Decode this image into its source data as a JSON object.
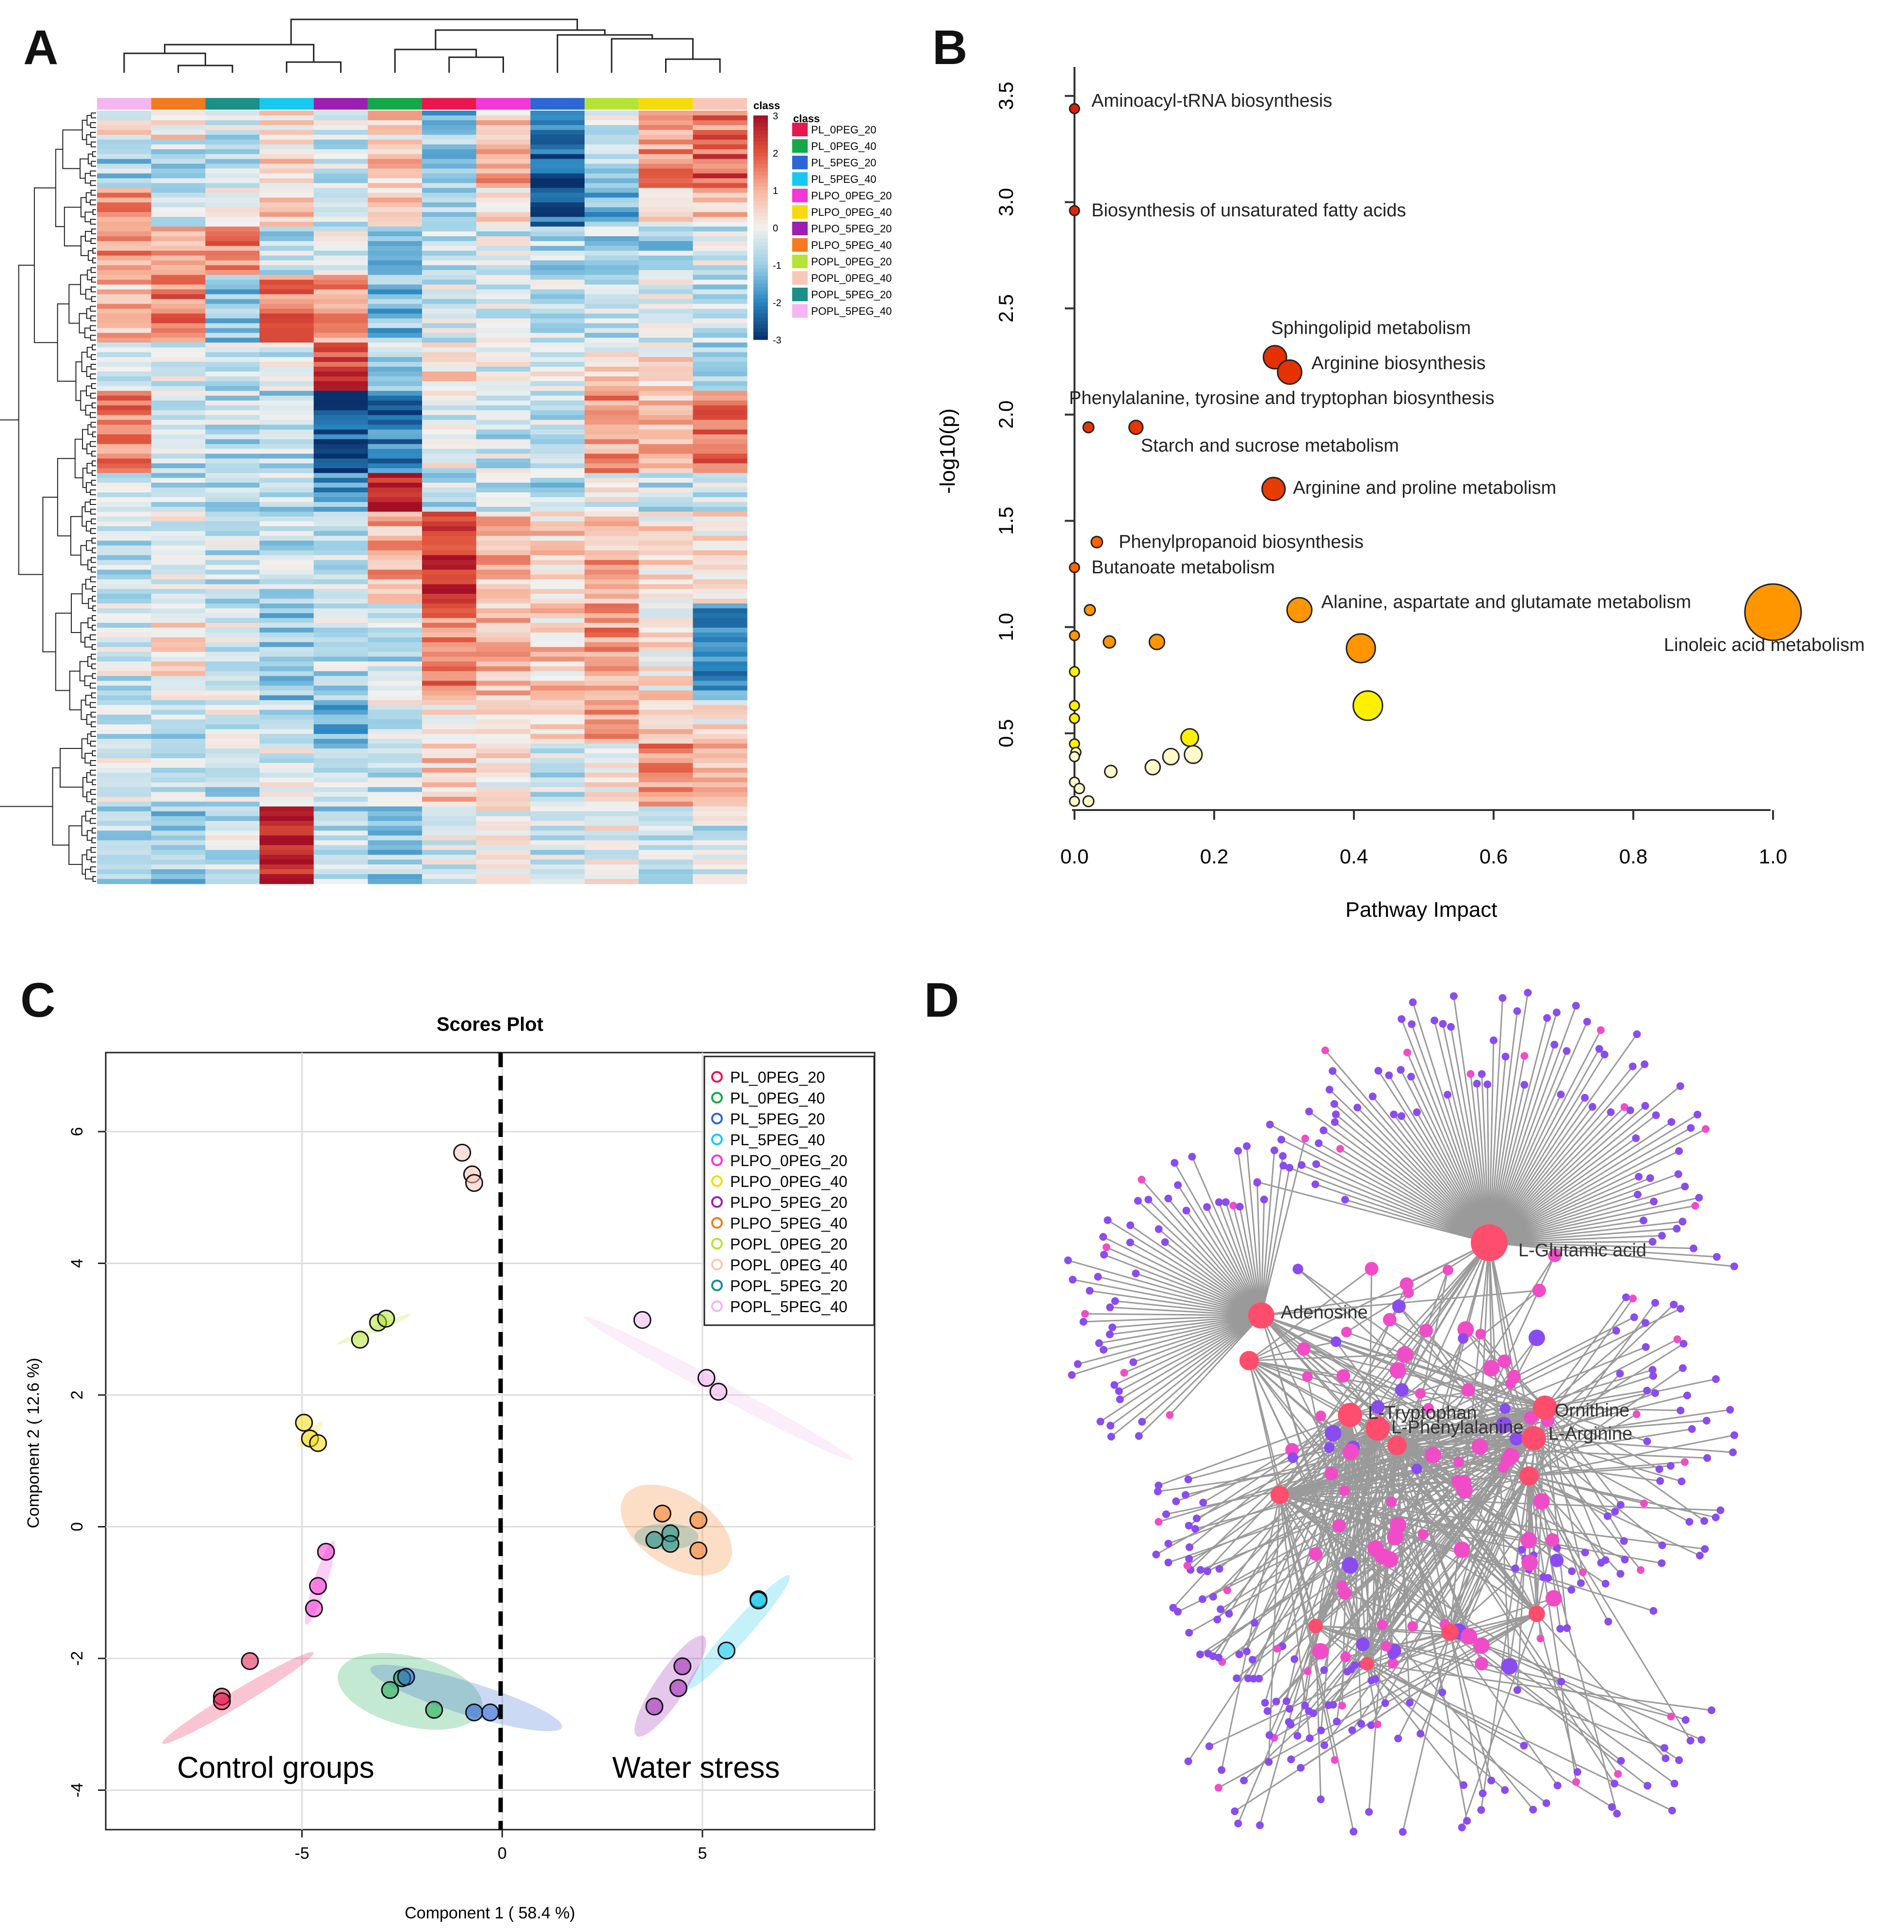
{
  "panels": {
    "A": "A",
    "B": "B",
    "C": "C",
    "D": "D"
  },
  "colors": {
    "PL_0PEG_20": "#e8174d",
    "PL_0PEG_40": "#15a84a",
    "PL_5PEG_20": "#2f66d6",
    "PL_5PEG_40": "#17c9ef",
    "PLPO_0PEG_20": "#f437d6",
    "PLPO_0PEG_40": "#f5db0c",
    "PLPO_5PEG_20": "#9b1fb3",
    "PLPO_5PEG_40": "#f47a20",
    "POPL_0PEG_20": "#b6e337",
    "POPL_0PEG_40": "#f9c7b9",
    "POPL_5PEG_20": "#1b9088",
    "POPL_5PEG_40": "#f3b6f0",
    "network_hub": "#ff4d6d",
    "network_pink": "#f04cc8",
    "network_purple": "#8a4cef",
    "edge": "#9a9a9a"
  },
  "chart_data": [
    {
      "id": "heatmap",
      "type": "heatmap",
      "columns": [
        "POPL_5PEG_40",
        "PLPO_5PEG_40",
        "POPL_5PEG_20",
        "PL_5PEG_40",
        "PLPO_5PEG_20",
        "PL_0PEG_40",
        "PL_0PEG_20",
        "PLPO_0PEG_20",
        "PL_5PEG_20",
        "POPL_0PEG_20",
        "PLPO_0PEG_40",
        "POPL_0PEG_40"
      ],
      "scale_title": "class",
      "scale_ticks": [
        "3",
        "2",
        "1",
        "0",
        "-1",
        "-2",
        "-3"
      ],
      "scale_range": [
        -3,
        3
      ],
      "legend_title": "class",
      "legend_entries": [
        "PL_0PEG_20",
        "PL_0PEG_40",
        "PL_5PEG_20",
        "PL_5PEG_40",
        "PLPO_0PEG_20",
        "PLPO_0PEG_40",
        "PLPO_5PEG_20",
        "PLPO_5PEG_40",
        "POPL_0PEG_20",
        "POPL_0PEG_40",
        "POPL_5PEG_20",
        "POPL_5PEG_40"
      ],
      "rows": 160,
      "blocks": [
        {
          "from": 0.0,
          "to": 0.04,
          "vals": [
            0.3,
            0.5,
            -0.5,
            0.2,
            -0.4,
            0.5,
            -1.2,
            0.6,
            -2.0,
            -0.3,
            0.8,
            1.6
          ]
        },
        {
          "from": 0.04,
          "to": 0.1,
          "vals": [
            -0.9,
            -0.6,
            -0.8,
            0.4,
            -0.5,
            0.6,
            -1.0,
            1.0,
            -2.6,
            -0.9,
            1.2,
            2.0
          ]
        },
        {
          "from": 0.1,
          "to": 0.15,
          "vals": [
            1.1,
            -0.3,
            -0.2,
            0.5,
            -0.3,
            0.8,
            -0.6,
            0.5,
            -2.4,
            -1.4,
            0.3,
            0.6
          ]
        },
        {
          "from": 0.15,
          "to": 0.21,
          "vals": [
            1.4,
            1.2,
            1.6,
            -0.6,
            -0.4,
            -1.0,
            -0.5,
            -0.4,
            -0.8,
            -0.8,
            -0.8,
            -0.4
          ]
        },
        {
          "from": 0.21,
          "to": 0.3,
          "vals": [
            0.8,
            1.5,
            -1.0,
            1.7,
            1.2,
            -1.2,
            -0.4,
            -0.2,
            -0.5,
            -0.6,
            -0.3,
            -0.5
          ]
        },
        {
          "from": 0.3,
          "to": 0.36,
          "vals": [
            -0.4,
            -0.4,
            -0.5,
            -0.3,
            2.2,
            -0.7,
            0.6,
            -0.2,
            -0.1,
            0.3,
            0.4,
            -0.7
          ]
        },
        {
          "from": 0.36,
          "to": 0.47,
          "vals": [
            1.5,
            -0.6,
            -0.6,
            -0.7,
            -2.6,
            -2.2,
            -0.2,
            -0.5,
            -0.5,
            1.2,
            0.8,
            1.8
          ]
        },
        {
          "from": 0.47,
          "to": 0.52,
          "vals": [
            -0.5,
            -0.6,
            -0.8,
            -0.6,
            -1.5,
            2.6,
            -0.6,
            -0.4,
            -0.7,
            -0.2,
            -0.5,
            -0.4
          ]
        },
        {
          "from": 0.52,
          "to": 0.64,
          "vals": [
            -0.6,
            -0.2,
            -0.5,
            -0.7,
            -0.5,
            1.0,
            2.4,
            0.9,
            0.5,
            1.0,
            0.4,
            0.2
          ]
        },
        {
          "from": 0.64,
          "to": 0.76,
          "vals": [
            -0.4,
            0.3,
            -0.4,
            -1.0,
            -0.6,
            -0.6,
            1.6,
            0.9,
            0.6,
            1.2,
            0.3,
            -1.8
          ]
        },
        {
          "from": 0.76,
          "to": 0.82,
          "vals": [
            -0.7,
            -0.6,
            -0.3,
            -0.8,
            -1.6,
            -0.3,
            0.5,
            0.4,
            0.3,
            1.2,
            0.8,
            0.3
          ]
        },
        {
          "from": 0.82,
          "to": 0.9,
          "vals": [
            -0.4,
            -0.5,
            -0.6,
            -0.3,
            -0.6,
            -0.5,
            0.6,
            0.3,
            -0.5,
            0.2,
            1.4,
            0.6
          ]
        },
        {
          "from": 0.9,
          "to": 1.0,
          "vals": [
            -0.7,
            -1.0,
            -0.5,
            2.8,
            -0.8,
            -0.9,
            -0.3,
            0.1,
            -0.5,
            -0.1,
            -0.3,
            -0.4
          ]
        }
      ]
    },
    {
      "id": "pathway",
      "type": "scatter",
      "xlabel": "Pathway Impact",
      "ylabel": "-log10(p)",
      "xlim": [
        0,
        1.0
      ],
      "ylim": [
        0.15,
        3.55
      ],
      "xticks": [
        "0.0",
        "0.2",
        "0.4",
        "0.6",
        "0.8",
        "1.0"
      ],
      "yticks": [
        "0.5",
        "1.0",
        "1.5",
        "2.0",
        "2.5",
        "3.0",
        "3.5"
      ],
      "points": [
        {
          "x": 0.0,
          "y": 3.44,
          "label": "Aminoacyl-tRNA biosynthesis"
        },
        {
          "x": 0.0,
          "y": 2.96,
          "label": "Biosynthesis of unsaturated fatty acids"
        },
        {
          "x": 0.287,
          "y": 2.27,
          "label": "Sphingolipid metabolism"
        },
        {
          "x": 0.308,
          "y": 2.2,
          "label": "Arginine biosynthesis"
        },
        {
          "x": 0.02,
          "y": 1.94,
          "label": "Phenylalanine, tyrosine and tryptophan biosynthesis"
        },
        {
          "x": 0.088,
          "y": 1.94,
          "label": "Starch and sucrose metabolism"
        },
        {
          "x": 0.285,
          "y": 1.65,
          "label": "Arginine and proline metabolism"
        },
        {
          "x": 0.032,
          "y": 1.4,
          "label": "Phenylpropanoid biosynthesis"
        },
        {
          "x": 0.0,
          "y": 1.28,
          "label": "Butanoate metabolism"
        },
        {
          "x": 0.322,
          "y": 1.08,
          "label": "Alanine, aspartate and glutamate metabolism"
        },
        {
          "x": 1.0,
          "y": 1.07,
          "label": "Linoleic acid metabolism"
        },
        {
          "x": 0.022,
          "y": 1.08,
          "label": ""
        },
        {
          "x": 0.0,
          "y": 0.96,
          "label": ""
        },
        {
          "x": 0.05,
          "y": 0.93,
          "label": ""
        },
        {
          "x": 0.118,
          "y": 0.93,
          "label": ""
        },
        {
          "x": 0.41,
          "y": 0.9,
          "label": ""
        },
        {
          "x": 0.0,
          "y": 0.79,
          "label": ""
        },
        {
          "x": 0.42,
          "y": 0.63,
          "label": ""
        },
        {
          "x": 0.0,
          "y": 0.63,
          "label": ""
        },
        {
          "x": 0.0,
          "y": 0.57,
          "label": ""
        },
        {
          "x": 0.165,
          "y": 0.48,
          "label": ""
        },
        {
          "x": 0.0,
          "y": 0.45,
          "label": ""
        },
        {
          "x": 0.002,
          "y": 0.41,
          "label": ""
        },
        {
          "x": 0.0,
          "y": 0.39,
          "label": ""
        },
        {
          "x": 0.17,
          "y": 0.4,
          "label": ""
        },
        {
          "x": 0.138,
          "y": 0.39,
          "label": ""
        },
        {
          "x": 0.112,
          "y": 0.34,
          "label": ""
        },
        {
          "x": 0.052,
          "y": 0.32,
          "label": ""
        },
        {
          "x": 0.0,
          "y": 0.27,
          "label": ""
        },
        {
          "x": 0.007,
          "y": 0.24,
          "label": ""
        },
        {
          "x": 0.02,
          "y": 0.18,
          "label": ""
        },
        {
          "x": 0.0,
          "y": 0.18,
          "label": ""
        }
      ]
    },
    {
      "id": "scores",
      "type": "scatter",
      "title": "Scores Plot",
      "xlabel": "Component 1 ( 58.4 %)",
      "ylabel": "Component 2 ( 12.6 %)",
      "xlim": [
        -9.9,
        9.3
      ],
      "ylim": [
        -4.6,
        7.2
      ],
      "xticks": [
        "-5",
        "0",
        "5"
      ],
      "yticks": [
        "-4",
        "-2",
        "0",
        "2",
        "4",
        "6"
      ],
      "annotations": [
        "Control groups",
        "Water stress"
      ],
      "legend": [
        "PL_0PEG_20",
        "PL_0PEG_40",
        "PL_5PEG_20",
        "PL_5PEG_40",
        "PLPO_0PEG_20",
        "PLPO_0PEG_40",
        "PLPO_5PEG_20",
        "PLPO_5PEG_40",
        "POPL_0PEG_20",
        "POPL_0PEG_40",
        "POPL_5PEG_20",
        "POPL_5PEG_40"
      ],
      "series": [
        {
          "name": "PL_0PEG_20",
          "points": [
            [
              -7.0,
              -2.58
            ],
            [
              -7.0,
              -2.65
            ],
            [
              -6.3,
              -2.04
            ]
          ],
          "ellipse": {
            "cx": -6.6,
            "cy": -2.6,
            "rx": 2.2,
            "ry": 0.12,
            "angle": 31
          }
        },
        {
          "name": "PL_0PEG_40",
          "points": [
            [
              -2.8,
              -2.48
            ],
            [
              -2.5,
              -2.3
            ],
            [
              -1.7,
              -2.78
            ]
          ],
          "ellipse": {
            "cx": -2.3,
            "cy": -2.5,
            "rx": 1.85,
            "ry": 0.53,
            "angle": -14
          }
        },
        {
          "name": "PL_5PEG_20",
          "points": [
            [
              -2.4,
              -2.28
            ],
            [
              -0.7,
              -2.82
            ],
            [
              -0.3,
              -2.82
            ]
          ],
          "ellipse": {
            "cx": -0.9,
            "cy": -2.6,
            "rx": 2.5,
            "ry": 0.25,
            "angle": -17
          }
        },
        {
          "name": "PL_5PEG_40",
          "points": [
            [
              6.4,
              -1.1
            ],
            [
              6.4,
              -1.12
            ],
            [
              5.6,
              -1.88
            ]
          ],
          "ellipse": {
            "cx": 5.9,
            "cy": -1.6,
            "rx": 1.9,
            "ry": 0.15,
            "angle": 48
          }
        },
        {
          "name": "PLPO_0PEG_20",
          "points": [
            [
              -4.4,
              -0.38
            ],
            [
              -4.6,
              -0.9
            ],
            [
              -4.7,
              -1.24
            ]
          ],
          "ellipse": {
            "cx": -4.55,
            "cy": -0.85,
            "rx": 1.1,
            "ry": 0.1,
            "angle": 72
          }
        },
        {
          "name": "PLPO_0PEG_40",
          "points": [
            [
              -4.95,
              1.58
            ],
            [
              -4.8,
              1.34
            ],
            [
              -4.6,
              1.27
            ]
          ],
          "ellipse": {
            "cx": -4.8,
            "cy": 1.4,
            "rx": 0.45,
            "ry": 0.06,
            "angle": 45
          }
        },
        {
          "name": "PLPO_5PEG_20",
          "points": [
            [
              4.5,
              -2.12
            ],
            [
              4.4,
              -2.45
            ],
            [
              3.8,
              -2.73
            ]
          ],
          "ellipse": {
            "cx": 4.2,
            "cy": -2.42,
            "rx": 1.5,
            "ry": 0.23,
            "angle": 56
          }
        },
        {
          "name": "PLPO_5PEG_40",
          "points": [
            [
              4.0,
              0.2
            ],
            [
              4.9,
              0.1
            ],
            [
              4.9,
              -0.36
            ]
          ],
          "ellipse": {
            "cx": 4.35,
            "cy": -0.05,
            "rx": 1.55,
            "ry": 0.55,
            "angle": -33
          }
        },
        {
          "name": "POPL_0PEG_20",
          "points": [
            [
              -3.55,
              2.84
            ],
            [
              -3.1,
              3.1
            ],
            [
              -2.9,
              3.16
            ]
          ],
          "ellipse": {
            "cx": -3.2,
            "cy": 3.0,
            "rx": 1.0,
            "ry": 0.05,
            "angle": 22
          }
        },
        {
          "name": "POPL_0PEG_40",
          "points": [
            [
              -1.0,
              5.68
            ],
            [
              -0.75,
              5.35
            ],
            [
              -0.7,
              5.22
            ]
          ],
          "ellipse": {
            "cx": -0.8,
            "cy": 5.4,
            "rx": 0.35,
            "ry": 0.04,
            "angle": 65
          }
        },
        {
          "name": "POPL_5PEG_20",
          "points": [
            [
              3.8,
              -0.2
            ],
            [
              4.2,
              -0.1
            ],
            [
              4.2,
              -0.26
            ]
          ],
          "ellipse": {
            "cx": 4.1,
            "cy": -0.15,
            "rx": 0.8,
            "ry": 0.2,
            "angle": 0
          }
        },
        {
          "name": "POPL_5PEG_40",
          "points": [
            [
              3.5,
              3.14
            ],
            [
              5.1,
              2.26
            ],
            [
              5.4,
              2.05
            ]
          ],
          "ellipse": {
            "cx": 5.4,
            "cy": 2.1,
            "rx": 3.8,
            "ry": 0.12,
            "angle": -28
          }
        }
      ]
    },
    {
      "id": "network",
      "type": "network",
      "labels": [
        "L-Glutamic acid",
        "Adenosine",
        "L-Tryptophan",
        "L-Phenylalanine",
        "Ornithine",
        "L-Arginine"
      ]
    }
  ]
}
